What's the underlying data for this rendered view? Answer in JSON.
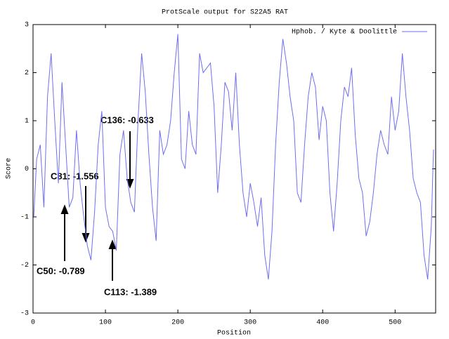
{
  "chart_data": {
    "type": "line",
    "title": "ProtScale output for S22A5 RAT",
    "x_label": "Position",
    "y_label": "Score",
    "x": [
      1,
      5,
      10,
      15,
      20,
      25,
      30,
      35,
      40,
      45,
      50,
      55,
      60,
      65,
      70,
      75,
      80,
      85,
      90,
      95,
      100,
      105,
      110,
      115,
      120,
      125,
      130,
      135,
      140,
      145,
      150,
      155,
      160,
      165,
      170,
      175,
      180,
      185,
      190,
      195,
      200,
      205,
      210,
      215,
      220,
      225,
      230,
      235,
      240,
      245,
      250,
      255,
      260,
      265,
      270,
      275,
      280,
      285,
      290,
      295,
      300,
      305,
      310,
      315,
      320,
      325,
      330,
      335,
      340,
      345,
      350,
      355,
      360,
      365,
      370,
      375,
      380,
      385,
      390,
      395,
      400,
      405,
      410,
      415,
      420,
      425,
      430,
      435,
      440,
      445,
      450,
      455,
      460,
      465,
      470,
      475,
      480,
      485,
      490,
      495,
      500,
      505,
      510,
      515,
      520,
      525,
      530,
      535,
      540,
      545,
      550,
      553
    ],
    "series": [
      {
        "name": "Hphob. / Kyte & Doolittle",
        "color": "#6e6ef0",
        "values": [
          -1.0,
          0.2,
          0.5,
          -0.8,
          1.5,
          2.4,
          1.0,
          -0.3,
          1.8,
          0.5,
          -0.8,
          -0.6,
          0.8,
          -0.3,
          -1.0,
          -1.6,
          -1.9,
          -0.9,
          0.5,
          1.2,
          -0.8,
          -1.2,
          -1.3,
          -1.7,
          0.3,
          0.8,
          -0.2,
          -0.7,
          -0.9,
          1.0,
          2.4,
          1.6,
          0.3,
          -0.8,
          -1.5,
          0.8,
          0.3,
          0.5,
          1.0,
          2.0,
          2.8,
          0.2,
          0.0,
          1.2,
          0.5,
          0.3,
          2.4,
          2.0,
          2.1,
          2.2,
          1.3,
          -0.5,
          0.5,
          1.8,
          1.6,
          0.8,
          2.0,
          0.5,
          -0.5,
          -1.0,
          -0.3,
          -0.7,
          -1.2,
          -0.6,
          -1.8,
          -2.3,
          -1.3,
          0.5,
          1.8,
          2.7,
          2.2,
          1.5,
          1.0,
          -0.5,
          -0.7,
          0.5,
          1.5,
          2.0,
          1.7,
          0.6,
          1.3,
          1.0,
          -0.5,
          -1.3,
          -0.3,
          1.0,
          1.7,
          1.5,
          2.1,
          0.7,
          -0.2,
          -0.5,
          -1.4,
          -1.1,
          -0.5,
          0.3,
          0.8,
          0.5,
          0.3,
          1.5,
          0.8,
          1.2,
          2.4,
          1.5,
          0.8,
          -0.2,
          -0.5,
          -0.7,
          -1.8,
          -2.3,
          -1.2,
          0.4
        ]
      }
    ],
    "xlim": [
      0,
      556
    ],
    "ylim": [
      -3,
      3
    ],
    "xticks": [
      0,
      100,
      200,
      300,
      400,
      500
    ],
    "yticks": [
      -3,
      -2,
      -1,
      0,
      1,
      2,
      3
    ],
    "legend": "upper right",
    "annotations": [
      "C136: -0.633",
      "C81: -1.556",
      "C50: -0.789",
      "C113: -1.389"
    ]
  }
}
